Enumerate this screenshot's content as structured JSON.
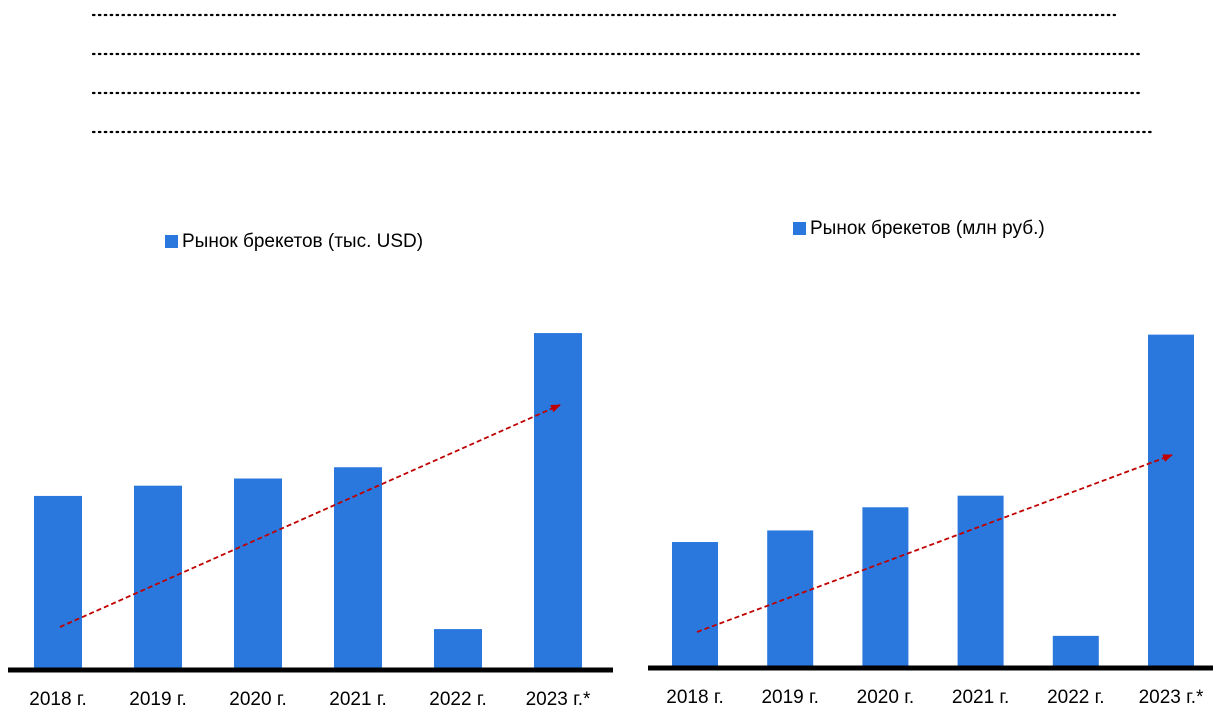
{
  "chart_data": [
    {
      "type": "bar",
      "legend": "Рынок брекетов (тыс. USD)",
      "color": "#2a77de",
      "categories": [
        "2018 г.",
        "2019 г.",
        "2020 г.",
        "2021 г.",
        "2022 г.",
        "2023 г.*"
      ],
      "values": [
        168,
        178,
        185,
        196,
        38,
        327
      ],
      "ylim": [
        0,
        330
      ]
    },
    {
      "type": "bar",
      "legend": "Рынок брекетов (млн руб.)",
      "color": "#2a77de",
      "categories": [
        "2018 г.",
        "2019 г.",
        "2020 г.",
        "2021 г.",
        "2022 г.",
        "2023 г.*"
      ],
      "values": [
        107,
        117,
        137,
        147,
        26,
        286
      ],
      "ylim": [
        0,
        290
      ]
    }
  ]
}
